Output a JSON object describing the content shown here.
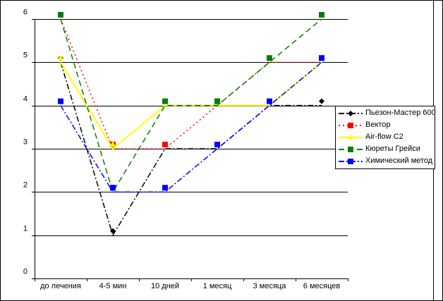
{
  "chart_data": {
    "type": "line",
    "title": "",
    "xlabel": "",
    "ylabel": "",
    "categories": [
      "до лечения",
      "4-5 мин",
      "10 дней",
      "1 месяц",
      "3 месяца",
      "6 месяцев"
    ],
    "ylim": [
      0,
      6
    ],
    "yticks": [
      "0",
      "1",
      "2",
      "3",
      "4",
      "5",
      "6"
    ],
    "grid": true,
    "legend_position": "right",
    "series": [
      {
        "name": "Пьезон-Мастер 600",
        "color": "#000000",
        "dash": "8,3,2,3",
        "marker": "diamond",
        "values": [
          5,
          1,
          3,
          3,
          4,
          4
        ]
      },
      {
        "name": "Вектор",
        "color": "#ff0000",
        "dash": "2,4",
        "marker": "square",
        "values": [
          6,
          3,
          3,
          4,
          5,
          5
        ]
      },
      {
        "name": "Air-flow C2",
        "color": "#ffff00",
        "dash": "",
        "marker": "triangle",
        "values": [
          5,
          3,
          4,
          4,
          4,
          5
        ]
      },
      {
        "name": "Кюреты Грейси",
        "color": "#008000",
        "dash": "8,5",
        "marker": "square",
        "values": [
          6,
          2,
          4,
          4,
          5,
          6
        ]
      },
      {
        "name": "Химический метод",
        "color": "#0000ff",
        "dash": "8,3,2,3",
        "marker": "square",
        "values": [
          4,
          2,
          2,
          3,
          4,
          5
        ]
      }
    ]
  }
}
